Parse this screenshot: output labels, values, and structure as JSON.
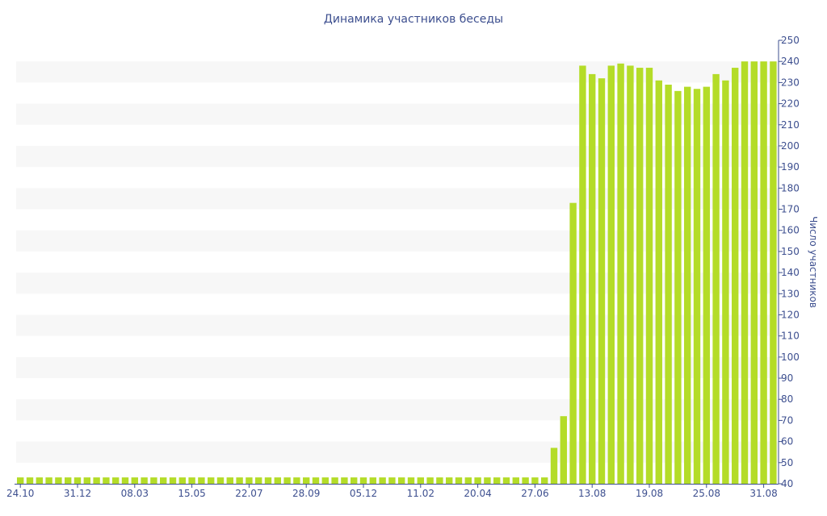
{
  "chart_data": {
    "type": "bar",
    "title": "Динамика участников беседы",
    "xlabel": "",
    "ylabel": "Число участников",
    "ylim": [
      40,
      250
    ],
    "yticks": [
      40,
      50,
      60,
      70,
      80,
      90,
      100,
      110,
      120,
      130,
      140,
      150,
      160,
      170,
      180,
      190,
      200,
      210,
      220,
      230,
      240,
      250
    ],
    "x_tick_labels": [
      "24.10",
      "31.12",
      "08.03",
      "15.05",
      "22.07",
      "28.09",
      "05.12",
      "11.02",
      "20.04",
      "27.06",
      "13.08",
      "19.08",
      "25.08",
      "31.08"
    ],
    "y_axis_position": "right",
    "grid": "alternating horizontal bands",
    "legend": "none",
    "colors": {
      "bar": "#b4dc28",
      "band": "#f7f7f7",
      "text": "#3d4f8f",
      "axis": "#3d4f8f"
    },
    "values": [
      43,
      43,
      43,
      43,
      43,
      43,
      43,
      43,
      43,
      43,
      43,
      43,
      43,
      43,
      43,
      43,
      43,
      43,
      43,
      43,
      43,
      43,
      43,
      43,
      43,
      43,
      43,
      43,
      43,
      43,
      43,
      43,
      43,
      43,
      43,
      43,
      43,
      43,
      43,
      43,
      43,
      43,
      43,
      43,
      43,
      43,
      43,
      43,
      43,
      43,
      43,
      43,
      43,
      43,
      43,
      43,
      57,
      72,
      173,
      238,
      234,
      232,
      238,
      239,
      238,
      237,
      237,
      231,
      229,
      226,
      228,
      227,
      228,
      234,
      231,
      237,
      240,
      240,
      240,
      240
    ]
  }
}
